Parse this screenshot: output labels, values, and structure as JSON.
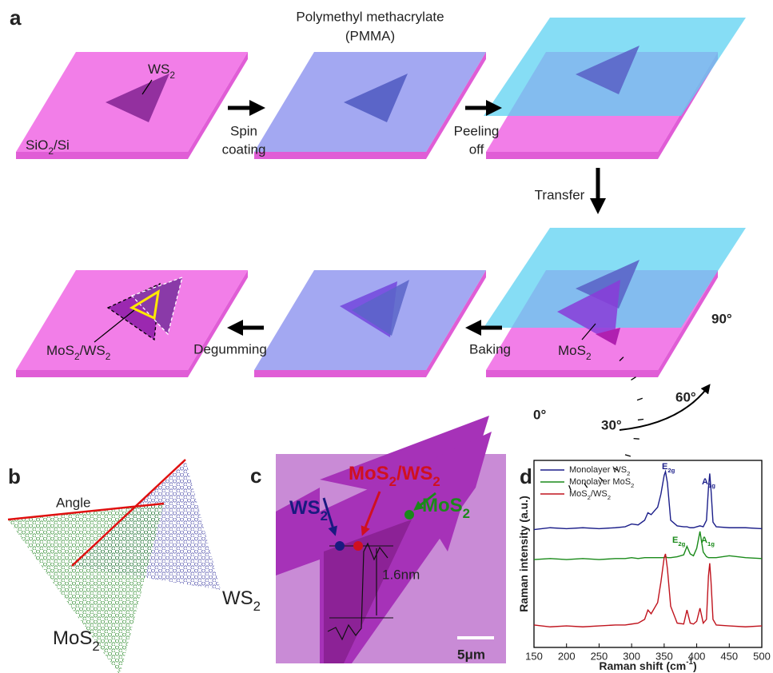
{
  "panel_a": {
    "label": "a",
    "pmma": "Polymethyl methacrylate",
    "pmma_abbr": "(PMMA)",
    "ws2": [
      "WS",
      {
        "sub": "2"
      }
    ],
    "substrate": [
      "SiO",
      {
        "sub": "2"
      },
      "/Si"
    ],
    "spin": "Spin",
    "coating": "coating",
    "peeling": "Peeling",
    "off": "off",
    "transfer": "Transfer",
    "mos2": [
      "MoS",
      {
        "sub": "2"
      }
    ],
    "baking": "Baking",
    "degumming": "Degumming",
    "hetero": [
      "MoS",
      {
        "sub": "2"
      },
      "/WS",
      {
        "sub": "2"
      }
    ],
    "angles": [
      "0°",
      "30°",
      "60°",
      "90°"
    ]
  },
  "panel_b": {
    "label": "b",
    "angle": "Angle",
    "ws2": [
      "WS",
      {
        "sub": "2"
      }
    ],
    "mos2": [
      "MoS",
      {
        "sub": "2"
      }
    ]
  },
  "panel_c": {
    "label": "c",
    "hetero": [
      "MoS",
      {
        "sub": "2"
      },
      "/WS",
      {
        "sub": "2"
      }
    ],
    "ws2": [
      "WS",
      {
        "sub": "2"
      }
    ],
    "mos2": [
      "MoS",
      {
        "sub": "2"
      }
    ],
    "height": "1.6nm",
    "scale": "5μm"
  },
  "panel_d": {
    "label": "d",
    "chart_data": {
      "type": "line",
      "x_label": [
        "Raman shift (cm",
        {
          "sup": "-1"
        },
        ")"
      ],
      "y_label": [
        "Raman intensity (a.u.)"
      ],
      "xlim": [
        150,
        500
      ],
      "xticks": [
        150,
        200,
        250,
        300,
        350,
        400,
        450,
        500
      ],
      "ylim": [
        0,
        100
      ],
      "x": [
        150,
        175,
        200,
        225,
        250,
        275,
        290,
        300,
        310,
        320,
        325,
        330,
        340,
        345,
        350,
        352,
        355,
        360,
        370,
        380,
        385,
        390,
        395,
        400,
        405,
        410,
        415,
        418,
        420,
        422,
        425,
        430,
        450,
        475,
        500
      ],
      "series": [
        {
          "name": [
            "Monolayer WS",
            {
              "sub": "2"
            }
          ],
          "color": "#1c1f8a",
          "values": [
            63,
            64,
            63.5,
            64,
            63.5,
            64,
            64.5,
            66,
            65.5,
            68,
            72,
            71,
            75,
            82,
            92,
            94,
            88,
            68,
            65,
            64.5,
            64.5,
            64,
            64,
            64.5,
            65,
            64.5,
            68,
            85,
            93,
            84,
            67,
            64.5,
            64,
            64,
            63.5
          ]
        },
        {
          "name": [
            "Monolayer MoS",
            {
              "sub": "2"
            }
          ],
          "color": "#1a8a1a",
          "values": [
            47,
            47.5,
            47,
            47.5,
            47,
            47.5,
            47.5,
            48,
            47.5,
            48,
            48,
            48,
            48,
            48,
            48,
            48.5,
            48,
            48,
            48.5,
            49.5,
            54,
            50,
            49,
            53,
            62,
            51,
            48.5,
            48,
            48,
            48,
            48,
            48,
            49,
            48,
            47.5
          ]
        },
        {
          "name": [
            "MoS",
            {
              "sub": "2"
            },
            "/WS",
            {
              "sub": "2"
            }
          ],
          "color": "#c0141e",
          "values": [
            12,
            11,
            11.5,
            11,
            11.5,
            12,
            12,
            12.5,
            13,
            15,
            20,
            18,
            24,
            35,
            48,
            50,
            42,
            22,
            13,
            12.5,
            20,
            13,
            12.5,
            14,
            21,
            13,
            15,
            38,
            45,
            35,
            15,
            12,
            11.5,
            11,
            11.5
          ]
        }
      ],
      "annotations": [
        {
          "text": [
            "E",
            {
              "sub": "2g"
            }
          ],
          "color": "#1c1f8a"
        },
        {
          "text": [
            "A",
            {
              "sub": "1g"
            }
          ],
          "color": "#1c1f8a"
        },
        {
          "text": [
            "E",
            {
              "sub": "2g"
            }
          ],
          "color": "#1a8a1a"
        },
        {
          "text": [
            "A",
            {
              "sub": "1g"
            }
          ],
          "color": "#1a8a1a"
        }
      ]
    }
  }
}
